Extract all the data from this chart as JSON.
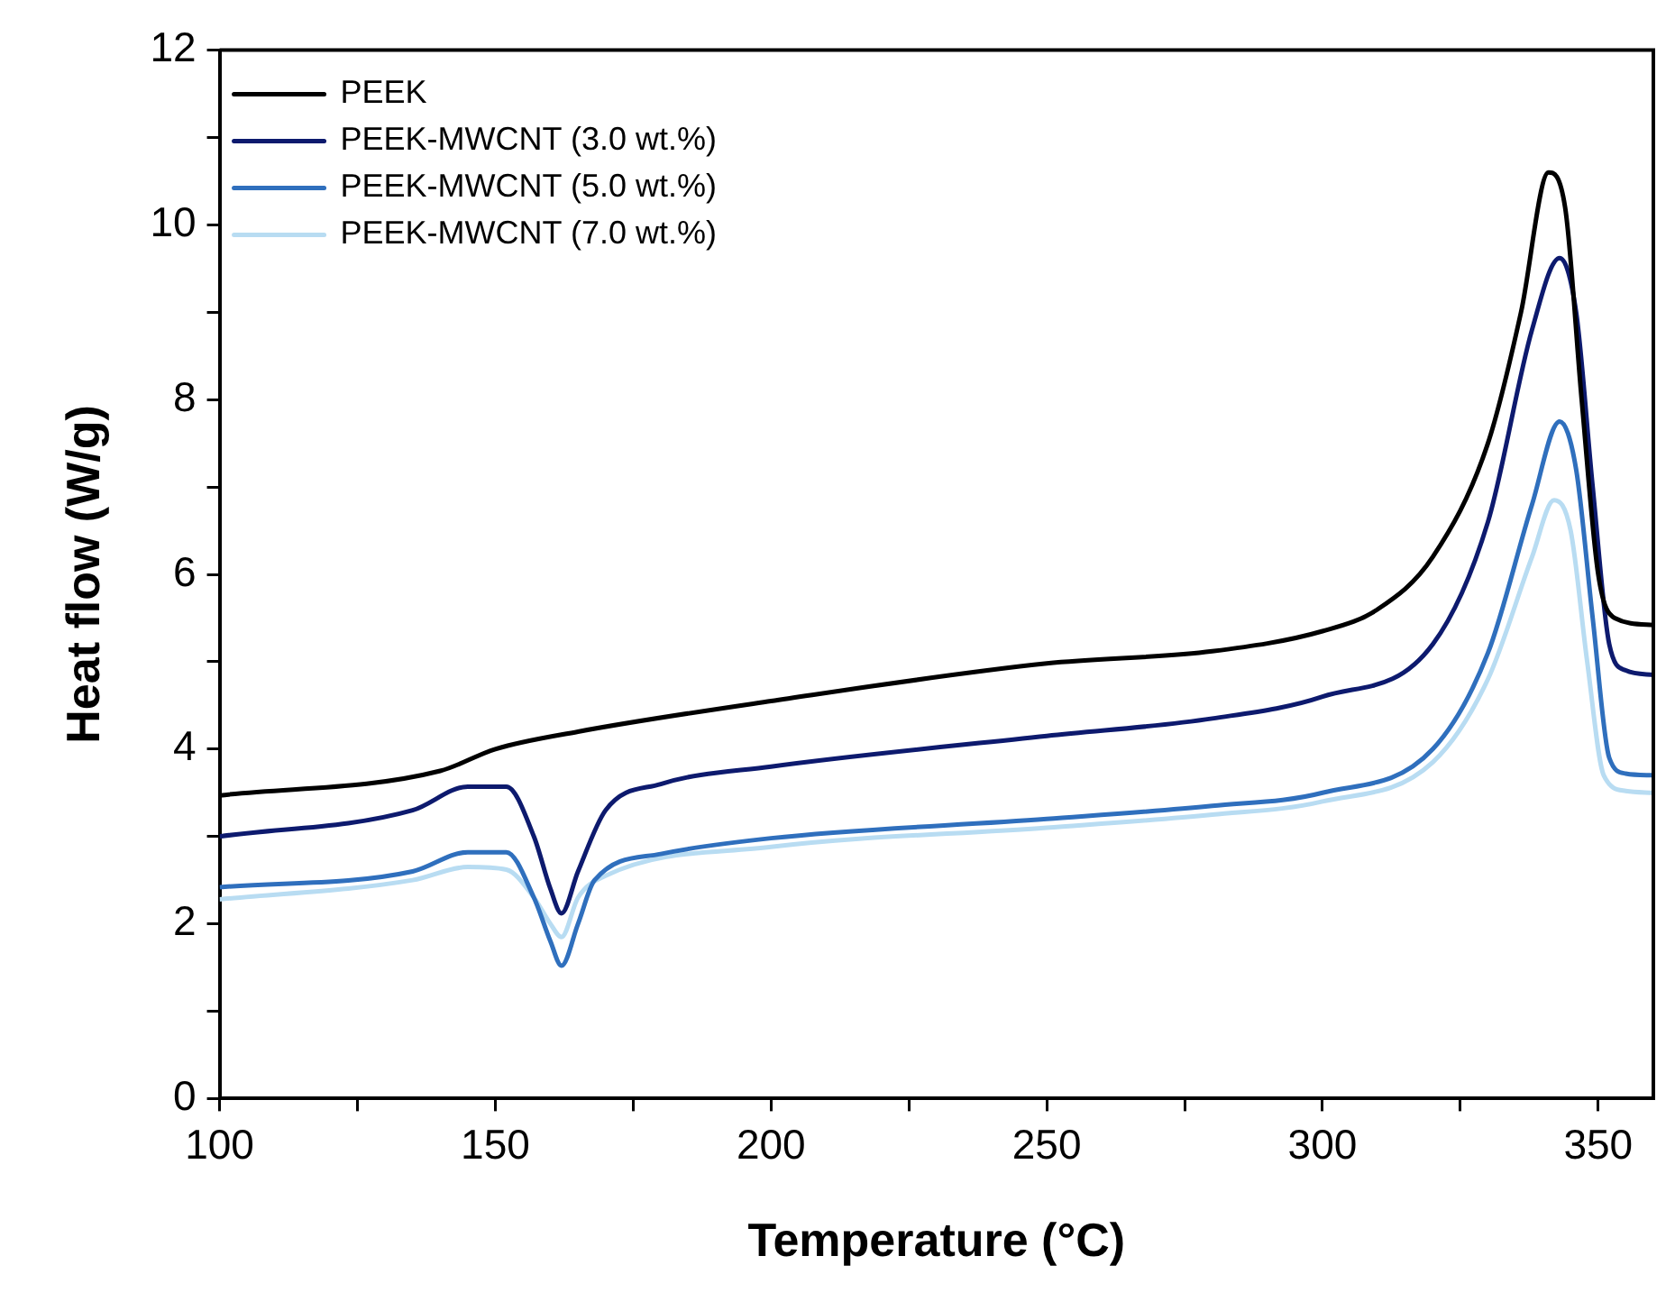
{
  "chart_data": {
    "type": "line",
    "xlabel": "Temperature (°C)",
    "ylabel": "Heat flow (W/g)",
    "xlim": [
      100,
      360
    ],
    "ylim": [
      0,
      12
    ],
    "xticks": [
      100,
      {
        "value": 125,
        "label": null
      },
      150,
      {
        "value": 175,
        "label": null
      },
      200,
      {
        "value": 225,
        "label": null
      },
      250,
      {
        "value": 275,
        "label": null
      },
      300,
      {
        "value": 325,
        "label": null
      },
      350
    ],
    "yticks": [
      0,
      {
        "value": 1,
        "label": null
      },
      2,
      {
        "value": 3,
        "label": null
      },
      4,
      {
        "value": 5,
        "label": null
      },
      6,
      {
        "value": 7,
        "label": null
      },
      8,
      {
        "value": 9,
        "label": null
      },
      10,
      {
        "value": 11,
        "label": null
      },
      12
    ],
    "grid": false,
    "legend": "top left",
    "marker": "none",
    "line_style": "solid",
    "series": [
      {
        "name": "PEEK",
        "color": "#000000",
        "x": [
          100,
          140,
          150,
          165,
          200,
          250,
          280,
          300,
          310,
          320,
          330,
          336,
          341,
          344,
          347,
          350,
          353,
          360
        ],
        "values": [
          3.47,
          3.75,
          4.0,
          4.2,
          4.55,
          4.98,
          5.12,
          5.35,
          5.6,
          6.2,
          7.5,
          9.0,
          10.6,
          10.2,
          8.0,
          6.0,
          5.5,
          5.42
        ]
      },
      {
        "name": "PEEK-MWCNT (3.0 wt.%)",
        "color": "#0d1a6e",
        "x": [
          100,
          135,
          145,
          152,
          157,
          160,
          162,
          165,
          170,
          180,
          200,
          250,
          280,
          300,
          320,
          330,
          338,
          343,
          346,
          349,
          352,
          355,
          360
        ],
        "values": [
          3.0,
          3.3,
          3.57,
          3.57,
          3.0,
          2.4,
          2.12,
          2.6,
          3.3,
          3.6,
          3.8,
          4.15,
          4.35,
          4.6,
          5.2,
          6.6,
          8.8,
          9.62,
          9.0,
          7.0,
          5.2,
          4.9,
          4.85
        ]
      },
      {
        "name": "PEEK-MWCNT (5.0 wt.%)",
        "color": "#2f6fbd",
        "x": [
          100,
          135,
          145,
          152,
          157,
          160,
          162,
          165,
          168,
          180,
          200,
          250,
          280,
          300,
          320,
          330,
          338,
          343,
          346,
          349,
          352,
          355,
          360
        ],
        "values": [
          2.42,
          2.6,
          2.82,
          2.82,
          2.3,
          1.8,
          1.52,
          2.0,
          2.5,
          2.8,
          2.98,
          3.2,
          3.35,
          3.5,
          4.0,
          5.1,
          6.8,
          7.75,
          7.2,
          5.5,
          3.9,
          3.72,
          3.7
        ]
      },
      {
        "name": "PEEK-MWCNT (7.0 wt.%)",
        "color": "#b8dcf2",
        "x": [
          100,
          135,
          145,
          152,
          157,
          160,
          162,
          165,
          170,
          200,
          250,
          280,
          300,
          320,
          330,
          338,
          342,
          345,
          348,
          351,
          355,
          360
        ],
        "values": [
          2.28,
          2.5,
          2.65,
          2.62,
          2.3,
          2.0,
          1.85,
          2.3,
          2.55,
          2.88,
          3.1,
          3.25,
          3.4,
          3.85,
          4.8,
          6.2,
          6.85,
          6.5,
          5.0,
          3.7,
          3.52,
          3.5
        ]
      }
    ]
  }
}
